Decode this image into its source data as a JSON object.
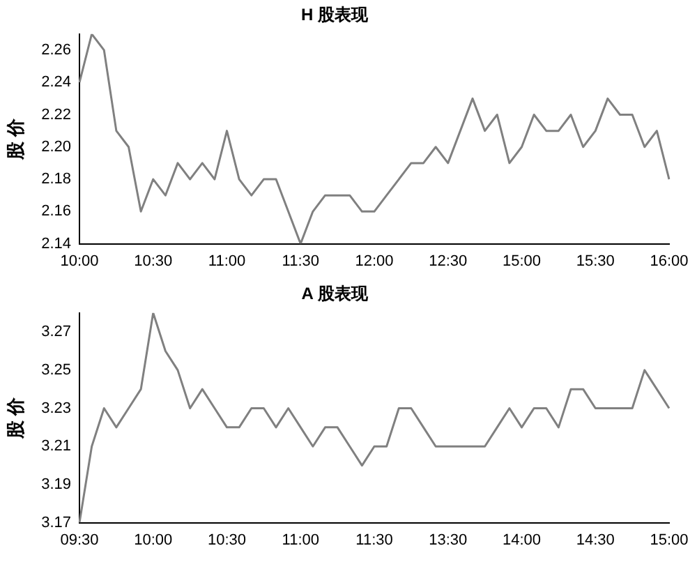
{
  "chart_data": [
    {
      "type": "line",
      "title": "H 股表现",
      "ylabel": "股 价",
      "color": "#808080",
      "categories": [
        "10:00",
        null,
        null,
        null,
        null,
        null,
        "10:30",
        null,
        null,
        null,
        null,
        null,
        "11:00",
        null,
        null,
        null,
        null,
        null,
        "11:30",
        null,
        null,
        null,
        null,
        null,
        "12:00",
        null,
        null,
        null,
        null,
        null,
        "12:30",
        null,
        null,
        null,
        null,
        null,
        "15:00",
        null,
        null,
        null,
        null,
        null,
        "15:30",
        null,
        null,
        null,
        null,
        null,
        "16:00"
      ],
      "values": [
        2.24,
        2.27,
        2.26,
        2.21,
        2.2,
        2.16,
        2.18,
        2.17,
        2.19,
        2.18,
        2.19,
        2.18,
        2.21,
        2.18,
        2.17,
        2.18,
        2.18,
        2.16,
        2.14,
        2.16,
        2.17,
        2.17,
        2.17,
        2.16,
        2.16,
        2.17,
        2.18,
        2.19,
        2.19,
        2.2,
        2.19,
        2.21,
        2.23,
        2.21,
        2.22,
        2.19,
        2.2,
        2.22,
        2.21,
        2.21,
        2.22,
        2.2,
        2.21,
        2.23,
        2.22,
        2.22,
        2.2,
        2.21,
        2.18
      ],
      "ylim": [
        2.14,
        2.27
      ],
      "yticks": [
        2.14,
        2.16,
        2.18,
        {
          "value": 2.2,
          "label": "2.20"
        },
        2.22,
        2.24,
        2.26
      ]
    },
    {
      "type": "line",
      "title": "A 股表现",
      "ylabel": "股 价",
      "color": "#808080",
      "categories": [
        "09:30",
        null,
        null,
        null,
        null,
        null,
        "10:00",
        null,
        null,
        null,
        null,
        null,
        "10:30",
        null,
        null,
        null,
        null,
        null,
        "11:00",
        null,
        null,
        null,
        null,
        null,
        "11:30",
        null,
        null,
        null,
        null,
        null,
        "13:30",
        null,
        null,
        null,
        null,
        null,
        "14:00",
        null,
        null,
        null,
        null,
        null,
        "14:30",
        null,
        null,
        null,
        null,
        null,
        "15:00"
      ],
      "values": [
        3.17,
        3.21,
        3.23,
        3.22,
        3.23,
        3.24,
        3.28,
        3.26,
        3.25,
        3.23,
        3.24,
        3.23,
        3.22,
        3.22,
        3.23,
        3.23,
        3.22,
        3.23,
        3.22,
        3.21,
        3.22,
        3.22,
        3.21,
        3.2,
        3.21,
        3.21,
        3.23,
        3.23,
        3.22,
        3.21,
        3.21,
        3.21,
        3.21,
        3.21,
        3.22,
        3.23,
        3.22,
        3.23,
        3.23,
        3.22,
        3.24,
        3.24,
        3.23,
        3.23,
        3.23,
        3.23,
        3.25,
        3.24,
        3.23
      ],
      "ylim": [
        3.17,
        3.28
      ],
      "yticks": [
        3.17,
        3.19,
        3.21,
        3.23,
        3.25,
        3.27
      ]
    }
  ]
}
